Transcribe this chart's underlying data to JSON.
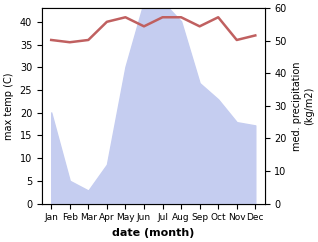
{
  "months": [
    "Jan",
    "Feb",
    "Mar",
    "Apr",
    "May",
    "Jun",
    "Jul",
    "Aug",
    "Sep",
    "Oct",
    "Nov",
    "Dec"
  ],
  "precipitation": [
    28,
    7,
    4,
    12,
    42,
    62,
    62,
    56,
    37,
    32,
    25,
    24
  ],
  "temperature": [
    36,
    35.5,
    36,
    40,
    41,
    39,
    41,
    41,
    39,
    41,
    36,
    37
  ],
  "temp_color": "#c06060",
  "precip_fill_color": "#c5cdf0",
  "ylim_left": [
    0,
    43
  ],
  "ylim_right": [
    0,
    60
  ],
  "xlabel": "date (month)",
  "ylabel_left": "max temp (C)",
  "ylabel_right": "med. precipitation\n(kg/m2)",
  "bg_color": "#ffffff"
}
